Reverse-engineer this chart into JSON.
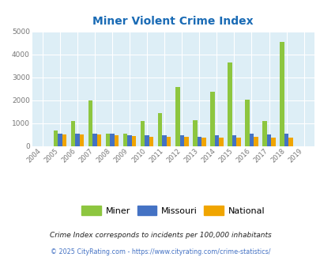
{
  "title": "Miner Violent Crime Index",
  "years": [
    2004,
    2005,
    2006,
    2007,
    2008,
    2009,
    2010,
    2011,
    2012,
    2013,
    2014,
    2015,
    2016,
    2017,
    2018,
    2019
  ],
  "miner": [
    0,
    670,
    1110,
    2000,
    530,
    530,
    1080,
    1450,
    2560,
    1130,
    2370,
    3660,
    2030,
    1080,
    4540,
    0
  ],
  "missouri": [
    0,
    540,
    540,
    530,
    540,
    490,
    490,
    490,
    490,
    420,
    460,
    490,
    560,
    510,
    530,
    0
  ],
  "national": [
    0,
    510,
    510,
    510,
    470,
    430,
    400,
    390,
    390,
    370,
    370,
    370,
    390,
    380,
    370,
    0
  ],
  "miner_color": "#8dc63f",
  "missouri_color": "#4472c4",
  "national_color": "#f0a500",
  "bg_color": "#ddeef6",
  "ylim": [
    0,
    5000
  ],
  "yticks": [
    0,
    1000,
    2000,
    3000,
    4000,
    5000
  ],
  "legend_labels": [
    "Miner",
    "Missouri",
    "National"
  ],
  "footnote1": "Crime Index corresponds to incidents per 100,000 inhabitants",
  "footnote2": "© 2025 CityRating.com - https://www.cityrating.com/crime-statistics/",
  "title_color": "#1a6bb5",
  "footnote1_color": "#222222",
  "footnote2_color": "#4472c4"
}
